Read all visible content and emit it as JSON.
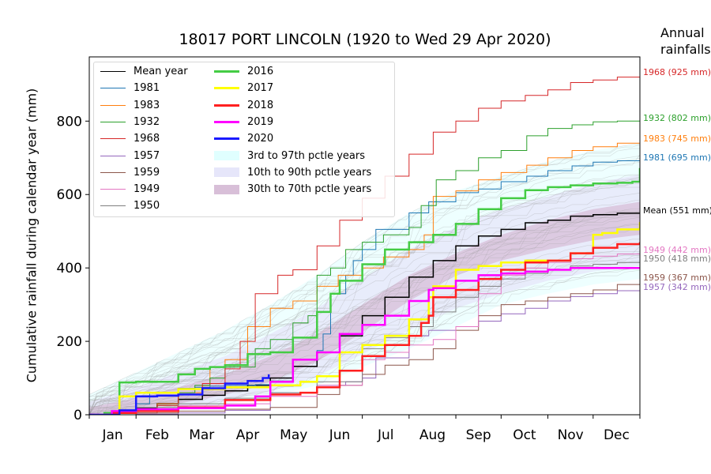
{
  "title": "18017 PORT LINCOLN  (1920 to Wed 29 Apr 2020)",
  "annual_title": "Annual\nrainfalls",
  "ylabel": "Cumulative rainfall during calendar year (mm)",
  "legend": {
    "col1": [
      {
        "label": "Mean year",
        "color": "#000000"
      },
      {
        "label": "1981",
        "color": "#1f77b4"
      },
      {
        "label": "1983",
        "color": "#ff7f0e"
      },
      {
        "label": "1932",
        "color": "#2ca02c"
      },
      {
        "label": "1968",
        "color": "#d62728"
      },
      {
        "label": "1957",
        "color": "#9467bd"
      },
      {
        "label": "1959",
        "color": "#8c564b"
      },
      {
        "label": "1949",
        "color": "#e377c2"
      },
      {
        "label": "1950",
        "color": "#7f7f7f"
      }
    ],
    "col2": [
      {
        "label": "2016",
        "color": "#44cc44",
        "kind": "line"
      },
      {
        "label": "2017",
        "color": "#ffff00",
        "kind": "line"
      },
      {
        "label": "2018",
        "color": "#ff2020",
        "kind": "line"
      },
      {
        "label": "2019",
        "color": "#ff00ff",
        "kind": "line"
      },
      {
        "label": "2020",
        "color": "#1a1aff",
        "kind": "line"
      },
      {
        "label": "3rd to 97th pctle years",
        "color": "#e0ffff",
        "kind": "patch"
      },
      {
        "label": "10th to 90th pctle years",
        "color": "#e6e6fa",
        "kind": "patch"
      },
      {
        "label": "30th to 70th pctle years",
        "color": "#d8bfd8",
        "kind": "patch"
      }
    ]
  },
  "right_labels": [
    {
      "text": "1968 (925 mm)",
      "value": 925,
      "color": "#d62728"
    },
    {
      "text": "1932 (802 mm)",
      "value": 802,
      "color": "#2ca02c"
    },
    {
      "text": "1983 (745 mm)",
      "value": 745,
      "color": "#ff7f0e"
    },
    {
      "text": "1981 (695 mm)",
      "value": 695,
      "color": "#1f77b4"
    },
    {
      "text": "Mean (551 mm)",
      "value": 551,
      "color": "#000000"
    },
    {
      "text": "1949 (442 mm)",
      "value": 442,
      "color": "#e377c2"
    },
    {
      "text": "1950 (418 mm)",
      "value": 418,
      "color": "#7f7f7f"
    },
    {
      "text": "1959 (367 mm)",
      "value": 367,
      "color": "#8c564b"
    },
    {
      "text": "1957 (342 mm)",
      "value": 342,
      "color": "#9467bd"
    }
  ],
  "chart_data": {
    "type": "line",
    "title": "18017 PORT LINCOLN  (1920 to Wed 29 Apr 2020)",
    "xlabel": "",
    "ylabel": "Cumulative rainfall during calendar year (mm)",
    "xlim": [
      0,
      365
    ],
    "ylim": [
      0,
      975
    ],
    "x_unit": "day of year",
    "month_ticks": [
      "Jan",
      "Feb",
      "Mar",
      "Apr",
      "May",
      "Jun",
      "Jul",
      "Aug",
      "Sep",
      "Oct",
      "Nov",
      "Dec"
    ],
    "month_starts": [
      0,
      31,
      59,
      90,
      120,
      151,
      181,
      212,
      243,
      273,
      304,
      334
    ],
    "yticks": [
      0,
      200,
      400,
      600,
      800
    ],
    "bands": [
      {
        "name": "3rd to 97th pctle years",
        "color": "#e0ffff",
        "x": [
          0,
          31,
          59,
          90,
          120,
          151,
          181,
          212,
          243,
          273,
          304,
          334,
          365
        ],
        "lower": [
          0,
          5,
          12,
          28,
          50,
          80,
          130,
          180,
          240,
          300,
          330,
          355,
          370
        ],
        "upper": [
          55,
          115,
          170,
          230,
          300,
          380,
          470,
          550,
          610,
          650,
          690,
          720,
          740
        ]
      },
      {
        "name": "10th to 90th pctle years",
        "color": "#e6e6fa",
        "x": [
          0,
          31,
          59,
          90,
          120,
          151,
          181,
          212,
          243,
          273,
          304,
          334,
          365
        ],
        "lower": [
          0,
          10,
          20,
          36,
          65,
          105,
          165,
          230,
          290,
          330,
          365,
          390,
          405
        ],
        "upper": [
          35,
          75,
          115,
          160,
          220,
          290,
          370,
          450,
          510,
          560,
          595,
          630,
          655
        ]
      },
      {
        "name": "30th to 70th pctle years",
        "color": "#d8bfd8",
        "x": [
          0,
          31,
          59,
          90,
          120,
          151,
          181,
          212,
          243,
          273,
          304,
          334,
          365
        ],
        "lower": [
          2,
          15,
          30,
          55,
          90,
          145,
          225,
          310,
          380,
          420,
          450,
          475,
          490
        ],
        "upper": [
          20,
          45,
          75,
          110,
          160,
          220,
          300,
          380,
          440,
          490,
          530,
          560,
          580
        ]
      }
    ],
    "series": [
      {
        "name": "Mean year",
        "color": "#000000",
        "width": 1.5,
        "x": [
          0,
          15,
          31,
          45,
          59,
          75,
          90,
          105,
          120,
          135,
          151,
          166,
          181,
          196,
          212,
          228,
          243,
          258,
          273,
          289,
          304,
          319,
          334,
          350,
          365
        ],
        "y": [
          0,
          8,
          19,
          30,
          42,
          53,
          65,
          80,
          100,
          132,
          170,
          215,
          270,
          320,
          375,
          420,
          460,
          487,
          505,
          523,
          530,
          541,
          545,
          549,
          551
        ]
      },
      {
        "name": "1981",
        "color": "#1f77b4",
        "width": 1,
        "x": [
          0,
          20,
          31,
          40,
          59,
          70,
          80,
          90,
          110,
          120,
          135,
          151,
          155,
          160,
          170,
          175,
          181,
          190,
          212,
          225,
          243,
          258,
          273,
          290,
          304,
          320,
          334,
          350,
          365
        ],
        "y": [
          0,
          10,
          30,
          60,
          72,
          75,
          78,
          80,
          82,
          92,
          150,
          175,
          220,
          330,
          380,
          420,
          450,
          505,
          550,
          580,
          605,
          615,
          635,
          650,
          665,
          678,
          688,
          692,
          695
        ]
      },
      {
        "name": "1983",
        "color": "#ff7f0e",
        "width": 1,
        "x": [
          0,
          20,
          31,
          45,
          59,
          75,
          80,
          90,
          105,
          120,
          135,
          151,
          165,
          181,
          195,
          212,
          222,
          228,
          243,
          258,
          273,
          290,
          304,
          320,
          334,
          350,
          365
        ],
        "y": [
          0,
          5,
          15,
          30,
          60,
          80,
          130,
          150,
          240,
          290,
          310,
          350,
          380,
          400,
          430,
          450,
          490,
          595,
          610,
          640,
          660,
          680,
          700,
          720,
          730,
          740,
          745
        ]
      },
      {
        "name": "1932",
        "color": "#2ca02c",
        "width": 1,
        "x": [
          0,
          31,
          45,
          59,
          70,
          80,
          90,
          110,
          120,
          135,
          145,
          151,
          160,
          170,
          181,
          195,
          212,
          220,
          230,
          243,
          258,
          273,
          290,
          304,
          320,
          334,
          350,
          365
        ],
        "y": [
          0,
          10,
          25,
          60,
          80,
          100,
          130,
          180,
          205,
          250,
          270,
          380,
          400,
          450,
          470,
          490,
          510,
          570,
          640,
          665,
          700,
          720,
          760,
          780,
          790,
          798,
          800,
          802
        ]
      },
      {
        "name": "1968",
        "color": "#d62728",
        "width": 1,
        "x": [
          0,
          31,
          45,
          59,
          75,
          90,
          100,
          110,
          125,
          135,
          151,
          166,
          181,
          196,
          212,
          228,
          243,
          258,
          273,
          289,
          304,
          319,
          334,
          350,
          365
        ],
        "y": [
          0,
          5,
          25,
          55,
          85,
          125,
          200,
          330,
          380,
          395,
          460,
          530,
          590,
          650,
          710,
          770,
          800,
          835,
          855,
          870,
          885,
          905,
          912,
          920,
          925
        ]
      },
      {
        "name": "1957",
        "color": "#9467bd",
        "width": 1,
        "x": [
          0,
          31,
          59,
          90,
          120,
          151,
          170,
          181,
          190,
          212,
          225,
          243,
          258,
          273,
          289,
          304,
          319,
          334,
          350,
          365
        ],
        "y": [
          0,
          2,
          5,
          12,
          60,
          80,
          90,
          100,
          155,
          215,
          230,
          240,
          255,
          275,
          290,
          310,
          322,
          330,
          338,
          342
        ]
      },
      {
        "name": "1959",
        "color": "#8c564b",
        "width": 1,
        "x": [
          0,
          31,
          59,
          90,
          120,
          151,
          166,
          181,
          196,
          212,
          228,
          243,
          258,
          273,
          289,
          304,
          319,
          334,
          350,
          365
        ],
        "y": [
          0,
          5,
          10,
          15,
          20,
          55,
          80,
          110,
          135,
          150,
          180,
          230,
          270,
          300,
          310,
          320,
          330,
          340,
          355,
          367
        ]
      },
      {
        "name": "1949",
        "color": "#e377c2",
        "width": 1,
        "x": [
          0,
          31,
          59,
          90,
          120,
          151,
          181,
          196,
          212,
          228,
          243,
          258,
          273,
          289,
          304,
          319,
          334,
          350,
          365
        ],
        "y": [
          0,
          15,
          25,
          30,
          50,
          80,
          150,
          170,
          190,
          205,
          240,
          330,
          380,
          400,
          415,
          425,
          432,
          438,
          442
        ]
      },
      {
        "name": "1950",
        "color": "#7f7f7f",
        "width": 1,
        "x": [
          0,
          31,
          59,
          90,
          120,
          151,
          181,
          196,
          212,
          228,
          243,
          258,
          273,
          289,
          304,
          319,
          334,
          350,
          365
        ],
        "y": [
          0,
          20,
          30,
          45,
          60,
          90,
          180,
          210,
          240,
          280,
          320,
          350,
          370,
          385,
          395,
          405,
          410,
          415,
          418
        ]
      },
      {
        "name": "2016",
        "color": "#44cc44",
        "width": 2.5,
        "x": [
          0,
          10,
          20,
          31,
          59,
          70,
          80,
          90,
          105,
          120,
          135,
          151,
          160,
          166,
          181,
          196,
          212,
          228,
          243,
          258,
          273,
          289,
          304,
          319,
          334,
          350,
          360,
          365
        ],
        "y": [
          0,
          5,
          88,
          90,
          110,
          125,
          130,
          135,
          165,
          170,
          210,
          280,
          330,
          365,
          410,
          450,
          470,
          490,
          520,
          560,
          590,
          612,
          620,
          625,
          630,
          632,
          635,
          672
        ]
      },
      {
        "name": "2017",
        "color": "#ffff00",
        "width": 2.5,
        "x": [
          0,
          20,
          31,
          59,
          90,
          120,
          140,
          151,
          166,
          181,
          196,
          212,
          225,
          228,
          243,
          258,
          273,
          289,
          304,
          319,
          334,
          340,
          350,
          365
        ],
        "y": [
          0,
          50,
          60,
          70,
          75,
          80,
          90,
          105,
          170,
          190,
          215,
          260,
          320,
          350,
          395,
          405,
          415,
          420,
          420,
          440,
          490,
          495,
          505,
          525
        ]
      },
      {
        "name": "2018",
        "color": "#ff2020",
        "width": 2.5,
        "x": [
          0,
          15,
          31,
          59,
          90,
          120,
          140,
          151,
          166,
          181,
          196,
          212,
          220,
          225,
          228,
          243,
          258,
          273,
          289,
          304,
          319,
          334,
          350,
          365
        ],
        "y": [
          0,
          5,
          10,
          20,
          40,
          55,
          60,
          75,
          120,
          160,
          190,
          215,
          250,
          270,
          320,
          340,
          370,
          395,
          415,
          420,
          440,
          455,
          465,
          470
        ]
      },
      {
        "name": "2019",
        "color": "#ff00ff",
        "width": 2.5,
        "x": [
          0,
          15,
          31,
          59,
          90,
          110,
          120,
          135,
          151,
          166,
          181,
          196,
          212,
          225,
          228,
          243,
          258,
          273,
          289,
          304,
          319,
          334,
          350,
          365
        ],
        "y": [
          0,
          10,
          15,
          18,
          25,
          50,
          90,
          150,
          170,
          220,
          245,
          270,
          310,
          340,
          345,
          365,
          380,
          385,
          390,
          395,
          400,
          400,
          400,
          400
        ]
      },
      {
        "name": "2020",
        "color": "#1a1aff",
        "width": 2.5,
        "x": [
          0,
          20,
          31,
          45,
          59,
          75,
          90,
          105,
          115,
          119
        ],
        "y": [
          0,
          12,
          50,
          52,
          55,
          72,
          85,
          92,
          100,
          110
        ]
      }
    ]
  }
}
